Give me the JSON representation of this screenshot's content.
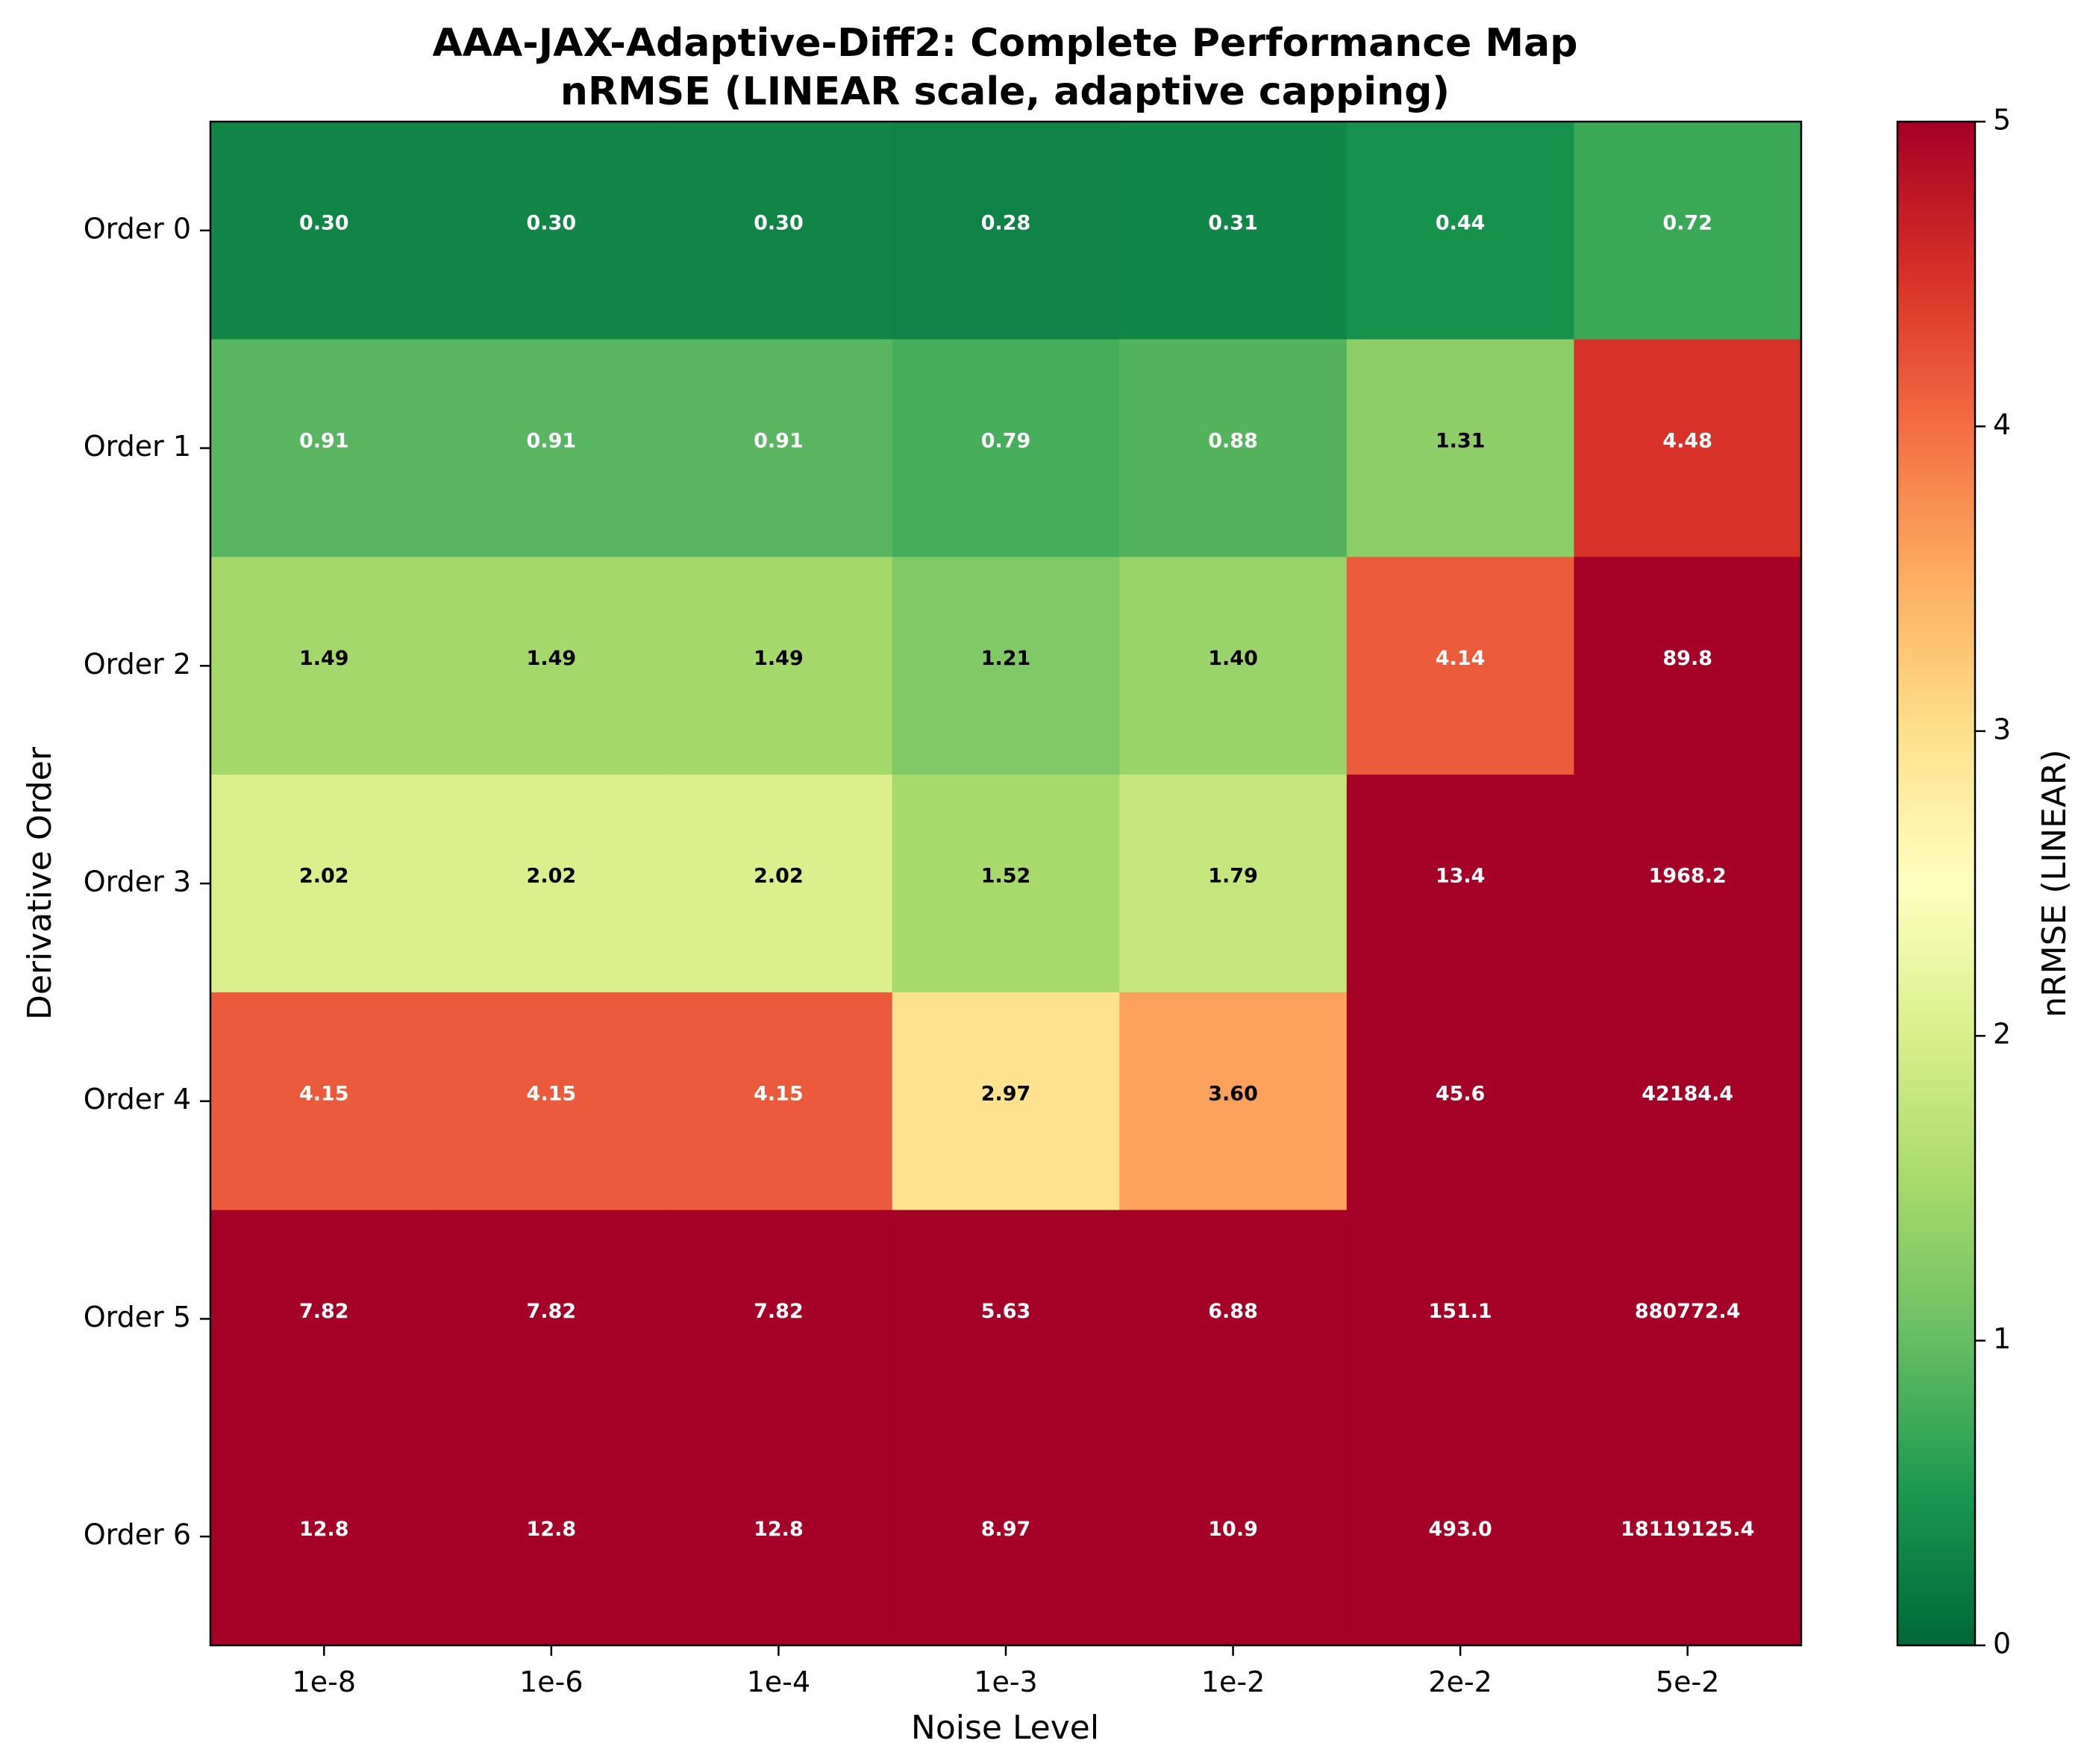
{
  "chart_data": {
    "type": "heatmap",
    "title_lines": [
      "AAA-JAX-Adaptive-Diff2: Complete Performance Map",
      "nRMSE (LINEAR scale, adaptive capping)"
    ],
    "xlabel": "Noise Level",
    "ylabel": "Derivative Order",
    "x_categories": [
      "1e-8",
      "1e-6",
      "1e-4",
      "1e-3",
      "1e-2",
      "2e-2",
      "5e-2"
    ],
    "y_categories": [
      "Order 0",
      "Order 1",
      "Order 2",
      "Order 3",
      "Order 4",
      "Order 5",
      "Order 6"
    ],
    "values": [
      [
        0.3,
        0.3,
        0.3,
        0.28,
        0.31,
        0.44,
        0.72
      ],
      [
        0.91,
        0.91,
        0.91,
        0.79,
        0.88,
        1.31,
        4.48
      ],
      [
        1.49,
        1.49,
        1.49,
        1.21,
        1.4,
        4.14,
        89.8
      ],
      [
        2.02,
        2.02,
        2.02,
        1.52,
        1.79,
        13.4,
        1968.2
      ],
      [
        4.15,
        4.15,
        4.15,
        2.97,
        3.6,
        45.6,
        42184.4
      ],
      [
        7.82,
        7.82,
        7.82,
        5.63,
        6.88,
        151.1,
        880772.4
      ],
      [
        12.8,
        12.8,
        12.8,
        8.97,
        10.9,
        493.0,
        18119125.4
      ]
    ],
    "cell_labels": [
      [
        "0.30",
        "0.30",
        "0.30",
        "0.28",
        "0.31",
        "0.44",
        "0.72"
      ],
      [
        "0.91",
        "0.91",
        "0.91",
        "0.79",
        "0.88",
        "1.31",
        "4.48"
      ],
      [
        "1.49",
        "1.49",
        "1.49",
        "1.21",
        "1.40",
        "4.14",
        "89.8"
      ],
      [
        "2.02",
        "2.02",
        "2.02",
        "1.52",
        "1.79",
        "13.4",
        "1968.2"
      ],
      [
        "4.15",
        "4.15",
        "4.15",
        "2.97",
        "3.60",
        "45.6",
        "42184.4"
      ],
      [
        "7.82",
        "7.82",
        "7.82",
        "5.63",
        "6.88",
        "151.1",
        "880772.4"
      ],
      [
        "12.8",
        "12.8",
        "12.8",
        "8.97",
        "10.9",
        "493.0",
        "18119125.4"
      ]
    ],
    "colorbar": {
      "label": "nRMSE (LINEAR)",
      "vmin": 0,
      "vmax": 5,
      "ticks": [
        0,
        1,
        2,
        3,
        4,
        5
      ],
      "tick_labels": [
        "0",
        "1",
        "2",
        "3",
        "4",
        "5"
      ],
      "colormap": "RdYlGn_r"
    },
    "grid": false,
    "legend": "none"
  }
}
